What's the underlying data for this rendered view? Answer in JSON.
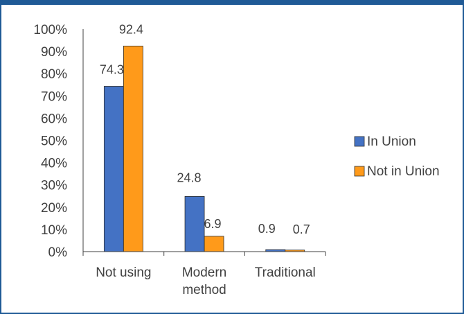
{
  "chart_data": {
    "type": "bar",
    "categories": [
      [
        "Not using"
      ],
      [
        "Modern",
        "method"
      ],
      [
        "Traditional"
      ]
    ],
    "series": [
      {
        "name": "In Union",
        "color": "#4472c4",
        "values": [
          74.3,
          24.8,
          0.9
        ],
        "labels": [
          "74.3",
          "24.8",
          "0.9"
        ]
      },
      {
        "name": "Not in Union",
        "color": "#ff9a1a",
        "values": [
          92.4,
          6.9,
          0.7
        ],
        "labels": [
          "92.4",
          "6.9",
          "0.7"
        ]
      }
    ],
    "yticks": [
      "0%",
      "10%",
      "20%",
      "30%",
      "40%",
      "50%",
      "60%",
      "70%",
      "80%",
      "90%",
      "100%"
    ],
    "ylim": [
      0,
      100
    ],
    "title": "",
    "xlabel": "",
    "ylabel": "",
    "grid": false,
    "legend": "right",
    "axis_color": "#404040"
  }
}
